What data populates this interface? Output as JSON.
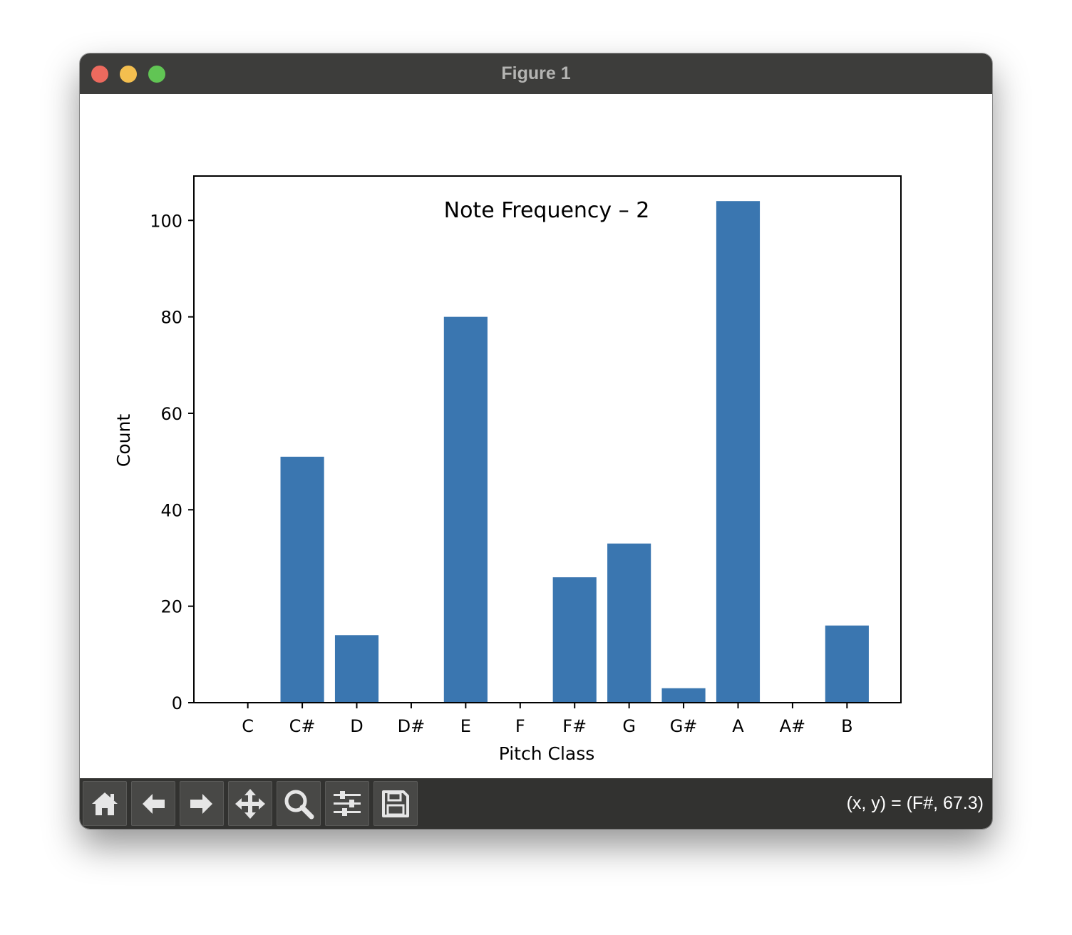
{
  "window": {
    "title": "Figure 1"
  },
  "toolbar": {
    "buttons": [
      {
        "name": "home-button",
        "icon": "home-icon"
      },
      {
        "name": "back-button",
        "icon": "arrow-left-icon"
      },
      {
        "name": "forward-button",
        "icon": "arrow-right-icon"
      },
      {
        "name": "pan-button",
        "icon": "move-icon"
      },
      {
        "name": "zoom-button",
        "icon": "magnifier-icon"
      },
      {
        "name": "configure-subplots-button",
        "icon": "sliders-icon"
      },
      {
        "name": "save-button",
        "icon": "floppy-disk-icon"
      }
    ],
    "coordinates": "(x, y) = (F#, 67.3)"
  },
  "chart_data": {
    "type": "bar",
    "title": "Note Frequency – 2",
    "xlabel": "Pitch Class",
    "ylabel": "Count",
    "categories": [
      "C",
      "C#",
      "D",
      "D#",
      "E",
      "F",
      "F#",
      "G",
      "G#",
      "A",
      "A#",
      "B"
    ],
    "values": [
      0,
      51,
      14,
      0,
      80,
      0,
      26,
      33,
      3,
      104,
      0,
      16
    ],
    "ylim": [
      0,
      109.2
    ],
    "yticks": [
      0,
      20,
      40,
      60,
      80,
      100
    ],
    "bar_color": "#3a76b0",
    "grid": false
  }
}
